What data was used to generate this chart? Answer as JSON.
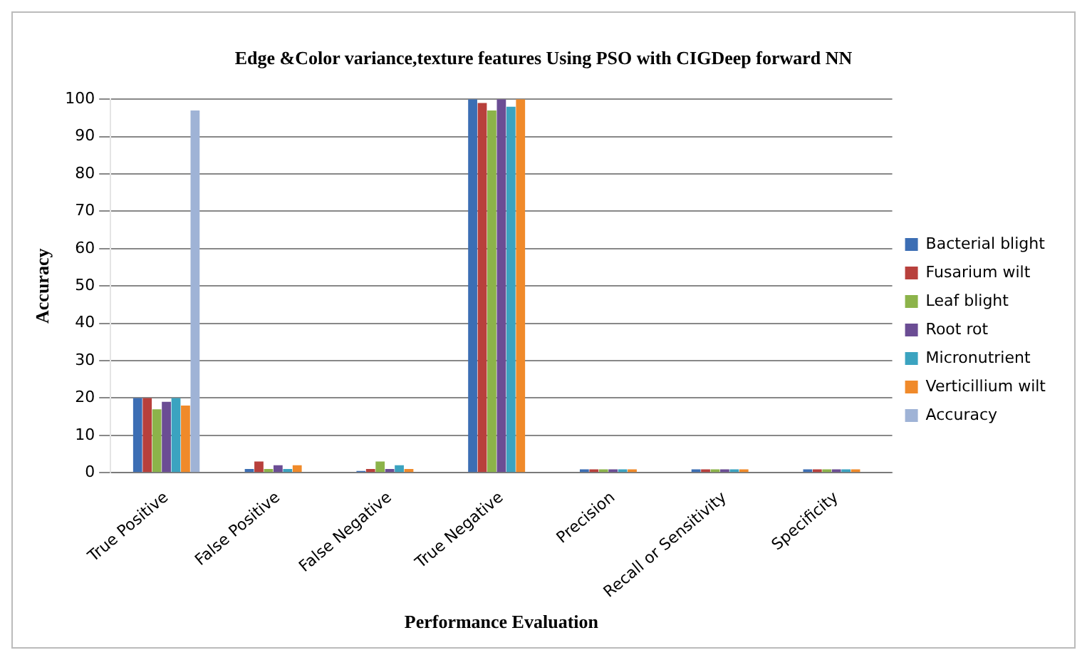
{
  "chart_data": {
    "type": "bar",
    "title": "Edge &Color variance,texture features Using PSO with CIGDeep forward NN",
    "xlabel": "Performance Evaluation",
    "ylabel": "Accuracy",
    "categories": [
      "True Positive",
      "False Positive",
      "False Negative",
      "True Negative",
      "Precision",
      "Recall or Sensitivity",
      "Specificity"
    ],
    "series": [
      {
        "name": "Bacterial blight",
        "color": "#3c6eb4",
        "values": [
          20,
          1,
          0.5,
          100,
          0.9,
          0.9,
          0.9
        ]
      },
      {
        "name": "Fusarium wilt",
        "color": "#b8403c",
        "values": [
          20,
          3,
          1,
          99,
          0.9,
          0.9,
          0.9
        ]
      },
      {
        "name": "Leaf blight",
        "color": "#8cb34a",
        "values": [
          17,
          1,
          3,
          97,
          0.9,
          0.9,
          0.9
        ]
      },
      {
        "name": "Root rot",
        "color": "#6b4d94",
        "values": [
          19,
          2,
          1,
          100,
          0.9,
          0.9,
          0.9
        ]
      },
      {
        "name": "Micronutrient",
        "color": "#3ba3c0",
        "values": [
          20,
          1,
          2,
          98,
          0.9,
          0.9,
          0.9
        ]
      },
      {
        "name": "Verticillium wilt",
        "color": "#f08a2a",
        "values": [
          18,
          2,
          1,
          100,
          0.9,
          0.9,
          0.9
        ]
      },
      {
        "name": "Accuracy",
        "color": "#9fb3d6",
        "values": [
          97,
          0,
          0,
          0,
          0,
          0,
          0
        ]
      }
    ],
    "ylim": [
      0,
      100
    ],
    "yticks": [
      0,
      10,
      20,
      30,
      40,
      50,
      60,
      70,
      80,
      90,
      100
    ],
    "grid": "y",
    "legend": "right"
  }
}
